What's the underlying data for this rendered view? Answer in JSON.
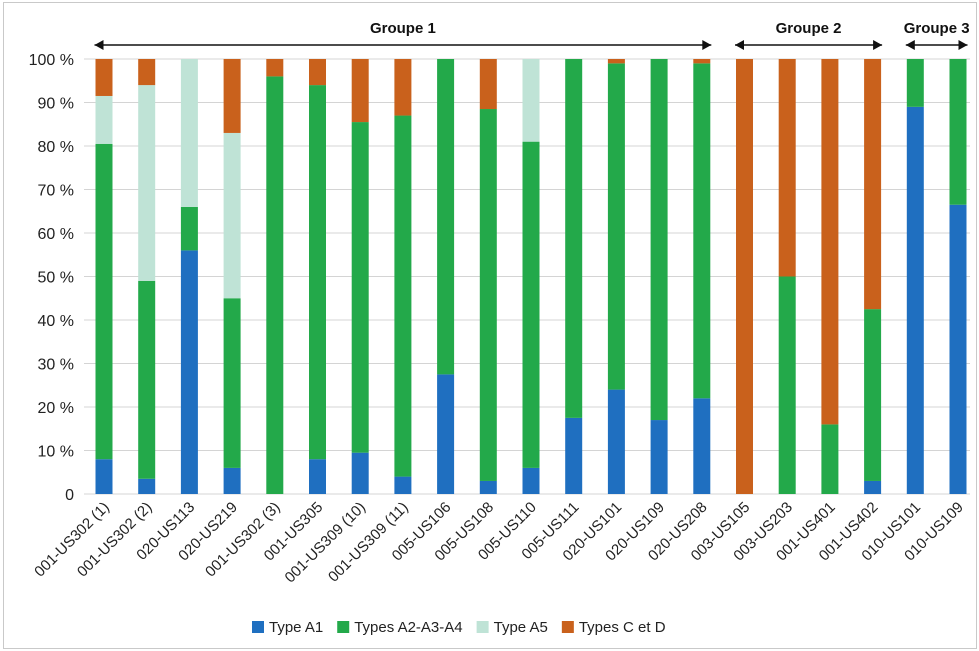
{
  "chart_data": {
    "type": "bar",
    "stacked": true,
    "yticks": [
      "0",
      "10 %",
      "20 %",
      "30 %",
      "40 %",
      "50 %",
      "60 %",
      "70 %",
      "80 %",
      "90 %",
      "100 %"
    ],
    "ylim": [
      0,
      100
    ],
    "grid": true,
    "legend_position": "bottom",
    "categories": [
      "001-US302 (1)",
      "001-US302 (2)",
      "020-US113",
      "020-US219",
      "001-US302 (3)",
      "001-US305",
      "001-US309 (10)",
      "001-US309 (11)",
      "005-US106",
      "005-US108",
      "005-US110",
      "005-US111",
      "020-US101",
      "020-US109",
      "020-US208",
      "003-US105",
      "003-US203",
      "001-US401",
      "001-US402",
      "010-US101",
      "010-US109"
    ],
    "series": [
      {
        "name": "Type A1",
        "color": "#1f6fc0",
        "values": [
          8,
          3.5,
          56,
          6,
          0,
          8,
          9.5,
          4,
          27.5,
          3,
          6,
          17.5,
          24,
          17,
          22,
          0,
          0,
          0,
          3,
          89,
          66.5
        ]
      },
      {
        "name": "Types A2-A3-A4",
        "color": "#23a94a",
        "values": [
          72.5,
          45.5,
          10,
          39,
          96,
          86,
          76,
          83,
          72.5,
          85.5,
          75,
          82.5,
          75,
          83,
          77,
          0,
          50,
          16,
          39.5,
          11,
          33.5
        ]
      },
      {
        "name": "Type A5",
        "color": "#bfe3d6",
        "values": [
          11,
          45,
          34,
          38,
          0,
          0,
          0,
          0,
          0,
          0,
          19,
          0,
          0,
          0,
          0,
          0,
          0,
          0,
          0,
          0,
          0
        ]
      },
      {
        "name": "Types C et D",
        "color": "#c9611c",
        "values": [
          8.5,
          6,
          0,
          17,
          4,
          6,
          14.5,
          13,
          0,
          11.5,
          0,
          0,
          1,
          0,
          1,
          100,
          50,
          84,
          57.5,
          0,
          0
        ]
      }
    ],
    "groups": [
      {
        "label": "Groupe 1",
        "from": 0,
        "to": 14
      },
      {
        "label": "Groupe 2",
        "from": 15,
        "to": 18
      },
      {
        "label": "Groupe 3",
        "from": 19,
        "to": 20
      }
    ]
  }
}
